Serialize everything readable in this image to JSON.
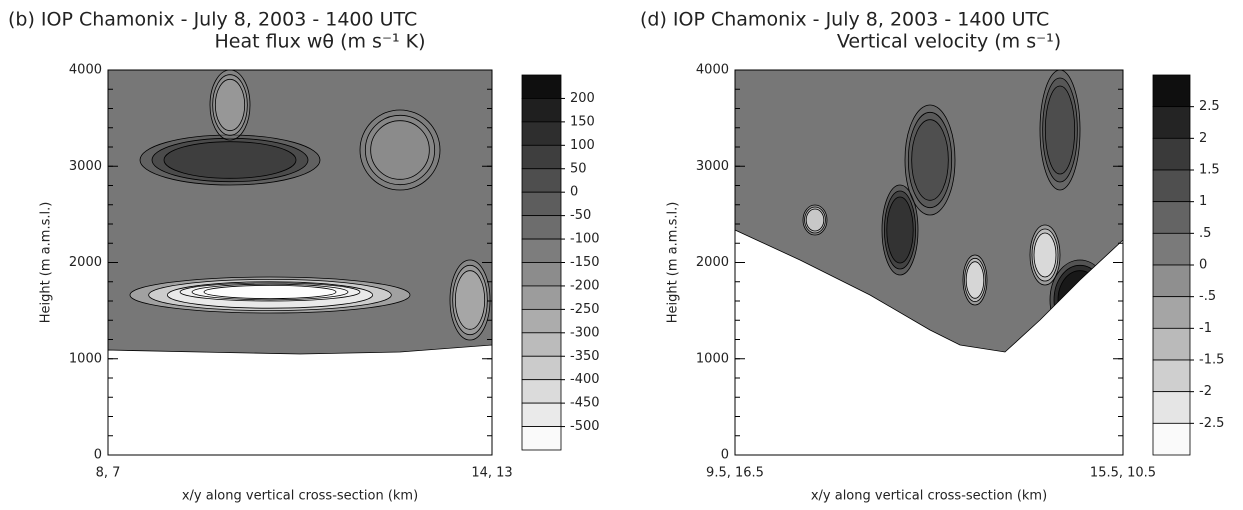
{
  "chart_data": [
    {
      "type": "contour",
      "title": "(b) IOP Chamonix - July 8, 2003 - 1400 UTC",
      "subtitle": "Heat flux wθ (m s⁻¹ K)",
      "ylabel": "Height (m a.m.s.l.)",
      "xlabel": "x/y along vertical cross-section (km)",
      "x_labels": [
        "8, 7",
        "14, 13"
      ],
      "ylim": [
        0,
        4000
      ],
      "yticks": [
        0,
        1000,
        2000,
        3000,
        4000
      ],
      "levels": [
        200,
        150,
        100,
        50,
        0,
        -50,
        -100,
        -150,
        -200,
        -250,
        -300,
        -350,
        -400,
        -450,
        -500
      ]
    },
    {
      "type": "contour",
      "title": "(d) IOP Chamonix - July 8, 2003 - 1400 UTC",
      "subtitle": "Vertical velocity (m s⁻¹)",
      "ylabel": "Height (m a.m.s.l.)",
      "xlabel": "x/y along vertical cross-section (km)",
      "x_labels": [
        "9.5, 16.5",
        "15.5, 10.5"
      ],
      "ylim": [
        0,
        4000
      ],
      "yticks": [
        0,
        1000,
        2000,
        3000,
        4000
      ],
      "levels": [
        2.5,
        2,
        1.5,
        1,
        {
          "value": 0.5,
          "label": ".5"
        },
        0,
        {
          "value": -0.5,
          "label": "-.5"
        },
        -1,
        -1.5,
        -2,
        -2.5
      ]
    }
  ]
}
